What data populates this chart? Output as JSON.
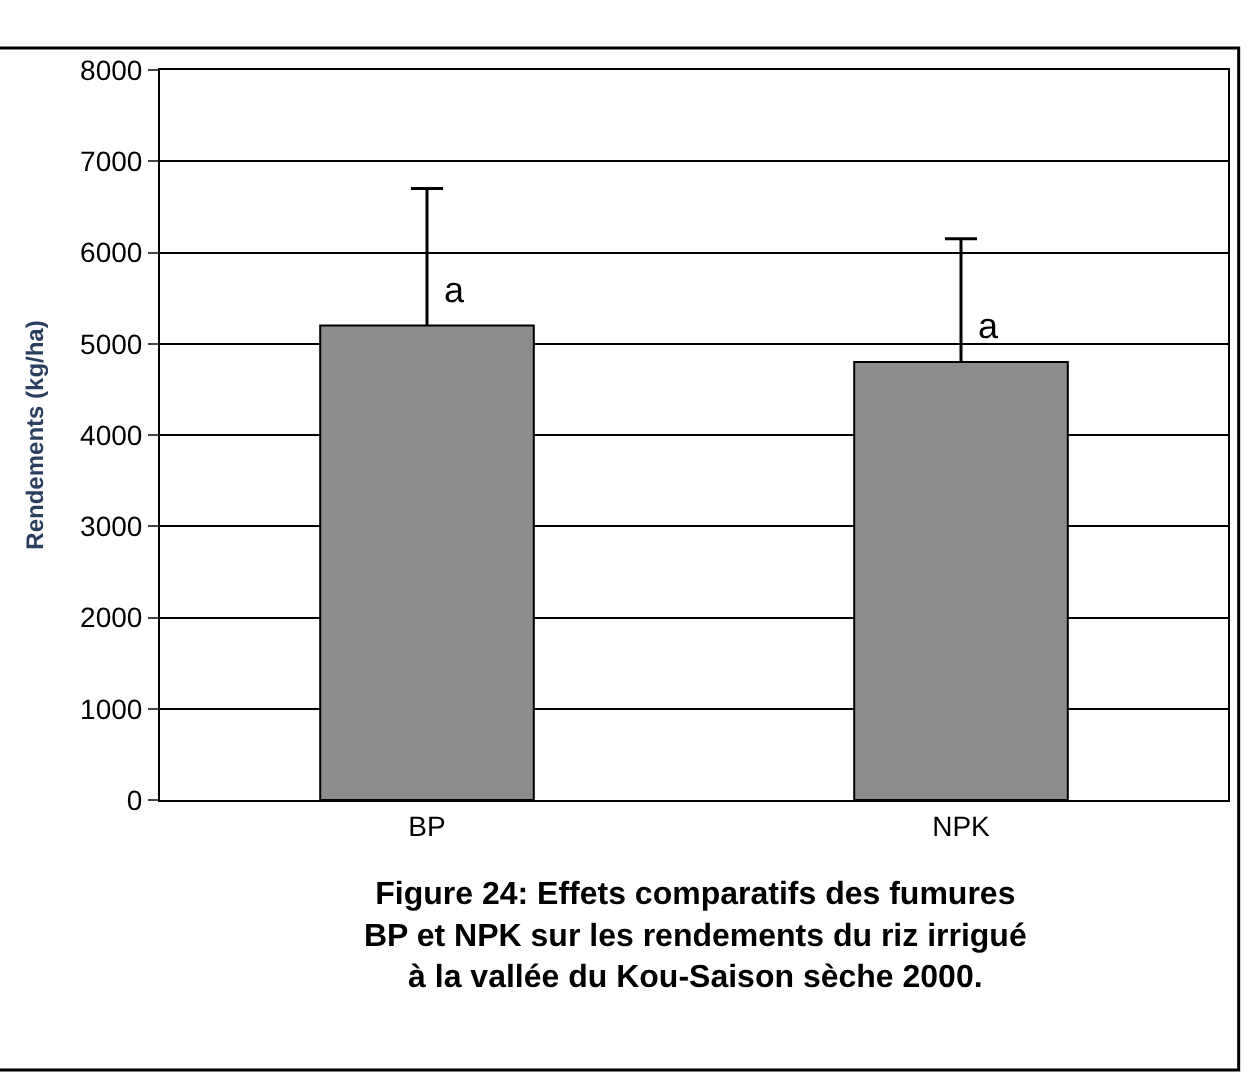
{
  "chart_data": {
    "type": "bar",
    "title": "Figure 24: Effets comparatifs des fumures\nBP et NPK sur les rendements du riz irrigué\nà la vallée du Kou-Saison sèche 2000.",
    "ylabel": "Rendements (kg/ha)",
    "categories": [
      "BP",
      "NPK"
    ],
    "values": [
      5200,
      4800
    ],
    "errors": [
      [
        5200,
        6700
      ],
      [
        4800,
        6150
      ]
    ],
    "color": "#8c8c8c",
    "ylim": [
      0,
      8000
    ],
    "yticks": [
      0,
      1000,
      2000,
      3000,
      4000,
      5000,
      6000,
      7000,
      8000
    ],
    "grid": "y",
    "legend": false,
    "annotations": [
      "a",
      "a"
    ]
  }
}
